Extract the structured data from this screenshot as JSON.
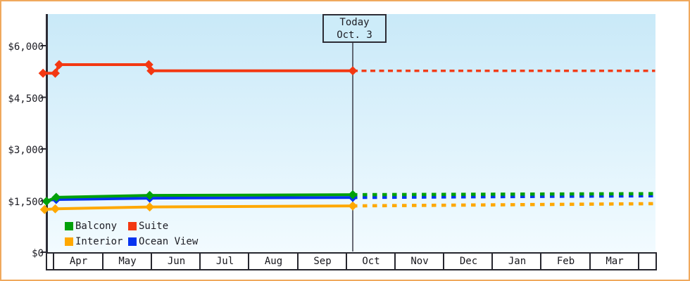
{
  "frame": {
    "border_color": "#F0A95D",
    "background": "#FFFFFF"
  },
  "chart_data": {
    "type": "line",
    "title": "",
    "xlabel": "",
    "ylabel": "",
    "x_axis": {
      "months": [
        "Apr",
        "May",
        "Jun",
        "Jul",
        "Aug",
        "Sep",
        "Oct",
        "Nov",
        "Dec",
        "Jan",
        "Feb",
        "Mar"
      ]
    },
    "y_axis": {
      "ticks": [
        "$0",
        "$1,500",
        "$3,000",
        "$4,500",
        "$6,000"
      ],
      "values": [
        0,
        1500,
        3000,
        4500,
        6000
      ],
      "ylim": [
        0,
        6000
      ],
      "unit": "USD"
    },
    "grid": "off",
    "legend_position": "bottom-left-inside",
    "plot_bg_gradient": {
      "top": "#C9E9F8",
      "bottom": "#F2FBFF"
    },
    "axis_color": "#2C2C35",
    "today": {
      "line1": "Today",
      "line2": "Oct. 3",
      "x": 6.16
    },
    "x_range": [
      -0.2,
      12.37
    ],
    "legend": [
      {
        "label": "Balcony",
        "color": "#00A00A"
      },
      {
        "label": "Suite",
        "color": "#F33812"
      },
      {
        "label": "Interior",
        "color": "#FFA800"
      },
      {
        "label": "Ocean View",
        "color": "#0533F0"
      }
    ],
    "series": [
      {
        "name": "Suite",
        "color": "#F33812",
        "points": [
          {
            "x": -0.2,
            "v": 5200,
            "m": 1
          },
          {
            "x": 0.05,
            "v": 5200,
            "m": 1
          },
          {
            "x": 0.13,
            "v": 5450,
            "m": 1
          },
          {
            "x": 1.97,
            "v": 5450,
            "m": 1
          },
          {
            "x": 2.02,
            "v": 5270,
            "m": 1
          },
          {
            "x": 6.16,
            "v": 5270,
            "m": 1
          }
        ],
        "projection": [
          {
            "x": 6.16,
            "v": 5270
          },
          {
            "x": 12.37,
            "v": 5270
          }
        ]
      },
      {
        "name": "Interior",
        "color": "#FFA800",
        "points": [
          {
            "x": -0.17,
            "v": 1240,
            "m": 1
          },
          {
            "x": 0.05,
            "v": 1260,
            "m": 1
          },
          {
            "x": 1.99,
            "v": 1315,
            "m": 1
          },
          {
            "x": 6.16,
            "v": 1345,
            "m": 1
          }
        ],
        "projection": [
          {
            "x": 6.16,
            "v": 1345
          },
          {
            "x": 12.37,
            "v": 1410
          }
        ]
      },
      {
        "name": "Ocean View",
        "color": "#0533F0",
        "points": [
          {
            "x": -0.1,
            "v": 1510,
            "m": 0
          },
          {
            "x": 0.07,
            "v": 1530,
            "m": 1
          },
          {
            "x": 1.99,
            "v": 1570,
            "m": 1
          },
          {
            "x": 6.16,
            "v": 1590,
            "m": 1
          }
        ],
        "projection": [
          {
            "x": 6.16,
            "v": 1590
          },
          {
            "x": 12.37,
            "v": 1640
          }
        ]
      },
      {
        "name": "Balcony",
        "color": "#00A00A",
        "points": [
          {
            "x": -0.13,
            "v": 1480,
            "m": 1
          },
          {
            "x": 0.07,
            "v": 1595,
            "m": 1
          },
          {
            "x": 1.99,
            "v": 1650,
            "m": 1
          },
          {
            "x": 6.16,
            "v": 1670,
            "m": 1
          }
        ],
        "projection": [
          {
            "x": 6.16,
            "v": 1670
          },
          {
            "x": 12.37,
            "v": 1700
          }
        ]
      }
    ]
  }
}
